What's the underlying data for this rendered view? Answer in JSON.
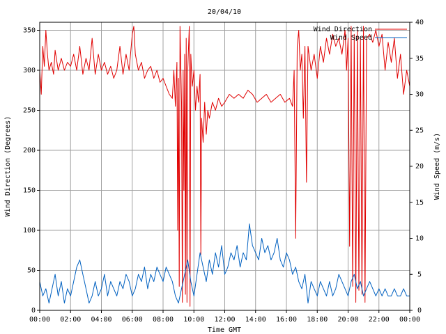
{
  "chart_data": {
    "type": "line",
    "title": "20/04/10",
    "xlabel": "Time GMT",
    "ylabel_left": "Wind Direction (Degrees)",
    "ylabel_right": "Wind Speed (m/s)",
    "x_unit": "hours",
    "xlim": [
      0,
      24
    ],
    "ylim_left": [
      0,
      360
    ],
    "ylim_right": [
      0,
      40
    ],
    "x_ticks": [
      {
        "value": 0,
        "label": "00:00"
      },
      {
        "value": 2,
        "label": "02:00"
      },
      {
        "value": 4,
        "label": "04:00"
      },
      {
        "value": 6,
        "label": "06:00"
      },
      {
        "value": 8,
        "label": "08:00"
      },
      {
        "value": 10,
        "label": "10:00"
      },
      {
        "value": 12,
        "label": "12:00"
      },
      {
        "value": 14,
        "label": "14:00"
      },
      {
        "value": 16,
        "label": "16:00"
      },
      {
        "value": 18,
        "label": "18:00"
      },
      {
        "value": 20,
        "label": "20:00"
      },
      {
        "value": 22,
        "label": "22:00"
      },
      {
        "value": 24,
        "label": "00:00"
      }
    ],
    "y_ticks_left": [
      {
        "value": 0,
        "label": "0"
      },
      {
        "value": 50,
        "label": "50"
      },
      {
        "value": 100,
        "label": "100"
      },
      {
        "value": 150,
        "label": "150"
      },
      {
        "value": 200,
        "label": "200"
      },
      {
        "value": 250,
        "label": "250"
      },
      {
        "value": 300,
        "label": "300"
      },
      {
        "value": 350,
        "label": "350"
      }
    ],
    "y_ticks_right": [
      {
        "value": 0,
        "label": "0"
      },
      {
        "value": 5,
        "label": "5"
      },
      {
        "value": 10,
        "label": "10"
      },
      {
        "value": 15,
        "label": "15"
      },
      {
        "value": 20,
        "label": "20"
      },
      {
        "value": 25,
        "label": "25"
      },
      {
        "value": 30,
        "label": "30"
      },
      {
        "value": 35,
        "label": "35"
      },
      {
        "value": 40,
        "label": "40"
      }
    ],
    "grid": true,
    "legend_position": "top-right",
    "series": [
      {
        "name": "Wind Direction",
        "axis": "left",
        "color": "#e00000",
        "points": [
          [
            0.0,
            300
          ],
          [
            0.1,
            270
          ],
          [
            0.2,
            330
          ],
          [
            0.3,
            305
          ],
          [
            0.4,
            350
          ],
          [
            0.5,
            320
          ],
          [
            0.6,
            300
          ],
          [
            0.75,
            310
          ],
          [
            0.9,
            295
          ],
          [
            1.0,
            325
          ],
          [
            1.2,
            300
          ],
          [
            1.4,
            315
          ],
          [
            1.6,
            300
          ],
          [
            1.8,
            310
          ],
          [
            2.0,
            305
          ],
          [
            2.2,
            320
          ],
          [
            2.4,
            300
          ],
          [
            2.6,
            330
          ],
          [
            2.8,
            295
          ],
          [
            3.0,
            315
          ],
          [
            3.2,
            300
          ],
          [
            3.4,
            340
          ],
          [
            3.6,
            295
          ],
          [
            3.8,
            320
          ],
          [
            4.0,
            300
          ],
          [
            4.2,
            310
          ],
          [
            4.4,
            295
          ],
          [
            4.6,
            305
          ],
          [
            4.8,
            290
          ],
          [
            5.0,
            300
          ],
          [
            5.2,
            330
          ],
          [
            5.4,
            295
          ],
          [
            5.6,
            320
          ],
          [
            5.8,
            300
          ],
          [
            6.0,
            345
          ],
          [
            6.1,
            355
          ],
          [
            6.2,
            320
          ],
          [
            6.4,
            300
          ],
          [
            6.6,
            310
          ],
          [
            6.8,
            290
          ],
          [
            7.0,
            300
          ],
          [
            7.2,
            305
          ],
          [
            7.4,
            290
          ],
          [
            7.6,
            300
          ],
          [
            7.8,
            285
          ],
          [
            8.0,
            290
          ],
          [
            8.2,
            280
          ],
          [
            8.4,
            270
          ],
          [
            8.6,
            265
          ],
          [
            8.7,
            300
          ],
          [
            8.8,
            255
          ],
          [
            8.9,
            310
          ],
          [
            8.95,
            100
          ],
          [
            9.0,
            290
          ],
          [
            9.05,
            30
          ],
          [
            9.1,
            355
          ],
          [
            9.2,
            260
          ],
          [
            9.25,
            10
          ],
          [
            9.3,
            300
          ],
          [
            9.35,
            150
          ],
          [
            9.4,
            320
          ],
          [
            9.45,
            20
          ],
          [
            9.5,
            340
          ],
          [
            9.55,
            10
          ],
          [
            9.6,
            300
          ],
          [
            9.7,
            355
          ],
          [
            9.75,
            5
          ],
          [
            9.8,
            320
          ],
          [
            9.9,
            280
          ],
          [
            10.0,
            300
          ],
          [
            10.1,
            250
          ],
          [
            10.2,
            280
          ],
          [
            10.3,
            260
          ],
          [
            10.4,
            295
          ],
          [
            10.45,
            70
          ],
          [
            10.5,
            240
          ],
          [
            10.6,
            210
          ],
          [
            10.7,
            260
          ],
          [
            10.8,
            220
          ],
          [
            10.9,
            250
          ],
          [
            11.0,
            240
          ],
          [
            11.2,
            260
          ],
          [
            11.4,
            250
          ],
          [
            11.6,
            265
          ],
          [
            11.8,
            255
          ],
          [
            12.0,
            260
          ],
          [
            12.3,
            270
          ],
          [
            12.6,
            265
          ],
          [
            12.9,
            270
          ],
          [
            13.2,
            265
          ],
          [
            13.5,
            275
          ],
          [
            13.8,
            270
          ],
          [
            14.1,
            260
          ],
          [
            14.4,
            265
          ],
          [
            14.7,
            270
          ],
          [
            15.0,
            260
          ],
          [
            15.3,
            265
          ],
          [
            15.6,
            270
          ],
          [
            15.9,
            260
          ],
          [
            16.2,
            265
          ],
          [
            16.4,
            255
          ],
          [
            16.5,
            300
          ],
          [
            16.6,
            90
          ],
          [
            16.7,
            330
          ],
          [
            16.8,
            350
          ],
          [
            16.9,
            300
          ],
          [
            17.0,
            320
          ],
          [
            17.1,
            240
          ],
          [
            17.2,
            330
          ],
          [
            17.3,
            160
          ],
          [
            17.4,
            330
          ],
          [
            17.6,
            300
          ],
          [
            17.8,
            320
          ],
          [
            18.0,
            290
          ],
          [
            18.2,
            330
          ],
          [
            18.4,
            310
          ],
          [
            18.6,
            340
          ],
          [
            18.8,
            320
          ],
          [
            19.0,
            345
          ],
          [
            19.2,
            330
          ],
          [
            19.4,
            340
          ],
          [
            19.6,
            320
          ],
          [
            19.8,
            350
          ],
          [
            19.9,
            300
          ],
          [
            20.0,
            340
          ],
          [
            20.1,
            80
          ],
          [
            20.2,
            355
          ],
          [
            20.3,
            30
          ],
          [
            20.4,
            345
          ],
          [
            20.5,
            10
          ],
          [
            20.6,
            350
          ],
          [
            20.7,
            25
          ],
          [
            20.8,
            340
          ],
          [
            20.9,
            20
          ],
          [
            21.0,
            355
          ],
          [
            21.1,
            10
          ],
          [
            21.2,
            340
          ],
          [
            21.4,
            345
          ],
          [
            21.6,
            335
          ],
          [
            21.8,
            350
          ],
          [
            22.0,
            330
          ],
          [
            22.2,
            345
          ],
          [
            22.4,
            300
          ],
          [
            22.6,
            335
          ],
          [
            22.8,
            310
          ],
          [
            23.0,
            340
          ],
          [
            23.2,
            290
          ],
          [
            23.4,
            320
          ],
          [
            23.6,
            270
          ],
          [
            23.8,
            300
          ],
          [
            24.0,
            280
          ]
        ]
      },
      {
        "name": "Wind Speed",
        "axis": "right",
        "color": "#0060c0",
        "points": [
          [
            0.0,
            4
          ],
          [
            0.2,
            2
          ],
          [
            0.4,
            3
          ],
          [
            0.6,
            1
          ],
          [
            0.8,
            3
          ],
          [
            1.0,
            5
          ],
          [
            1.2,
            2
          ],
          [
            1.4,
            4
          ],
          [
            1.6,
            1
          ],
          [
            1.8,
            3
          ],
          [
            2.0,
            2
          ],
          [
            2.2,
            4
          ],
          [
            2.4,
            6
          ],
          [
            2.6,
            7
          ],
          [
            2.8,
            5
          ],
          [
            3.0,
            3
          ],
          [
            3.2,
            1
          ],
          [
            3.4,
            2
          ],
          [
            3.6,
            4
          ],
          [
            3.8,
            2
          ],
          [
            4.0,
            3
          ],
          [
            4.2,
            5
          ],
          [
            4.4,
            2
          ],
          [
            4.6,
            4
          ],
          [
            4.8,
            3
          ],
          [
            5.0,
            2
          ],
          [
            5.2,
            4
          ],
          [
            5.4,
            3
          ],
          [
            5.6,
            5
          ],
          [
            5.8,
            4
          ],
          [
            6.0,
            2
          ],
          [
            6.2,
            3
          ],
          [
            6.4,
            5
          ],
          [
            6.6,
            4
          ],
          [
            6.8,
            6
          ],
          [
            7.0,
            3
          ],
          [
            7.2,
            5
          ],
          [
            7.4,
            4
          ],
          [
            7.6,
            6
          ],
          [
            7.8,
            5
          ],
          [
            8.0,
            4
          ],
          [
            8.2,
            6
          ],
          [
            8.4,
            5
          ],
          [
            8.6,
            4
          ],
          [
            8.8,
            2
          ],
          [
            9.0,
            1
          ],
          [
            9.2,
            3
          ],
          [
            9.4,
            5
          ],
          [
            9.6,
            7
          ],
          [
            9.8,
            4
          ],
          [
            10.0,
            2
          ],
          [
            10.2,
            5
          ],
          [
            10.4,
            8
          ],
          [
            10.6,
            6
          ],
          [
            10.8,
            4
          ],
          [
            11.0,
            7
          ],
          [
            11.2,
            5
          ],
          [
            11.4,
            8
          ],
          [
            11.6,
            6
          ],
          [
            11.8,
            9
          ],
          [
            12.0,
            5
          ],
          [
            12.2,
            6
          ],
          [
            12.4,
            8
          ],
          [
            12.6,
            7
          ],
          [
            12.8,
            9
          ],
          [
            13.0,
            6
          ],
          [
            13.2,
            8
          ],
          [
            13.4,
            7
          ],
          [
            13.6,
            12
          ],
          [
            13.8,
            9
          ],
          [
            14.0,
            8
          ],
          [
            14.2,
            7
          ],
          [
            14.4,
            10
          ],
          [
            14.6,
            8
          ],
          [
            14.8,
            9
          ],
          [
            15.0,
            7
          ],
          [
            15.2,
            8
          ],
          [
            15.4,
            10
          ],
          [
            15.6,
            7
          ],
          [
            15.8,
            6
          ],
          [
            16.0,
            8
          ],
          [
            16.2,
            7
          ],
          [
            16.4,
            5
          ],
          [
            16.6,
            6
          ],
          [
            16.8,
            4
          ],
          [
            17.0,
            3
          ],
          [
            17.2,
            5
          ],
          [
            17.4,
            1
          ],
          [
            17.6,
            4
          ],
          [
            17.8,
            3
          ],
          [
            18.0,
            2
          ],
          [
            18.2,
            4
          ],
          [
            18.4,
            3
          ],
          [
            18.6,
            2
          ],
          [
            18.8,
            4
          ],
          [
            19.0,
            2
          ],
          [
            19.2,
            3
          ],
          [
            19.4,
            5
          ],
          [
            19.6,
            4
          ],
          [
            19.8,
            3
          ],
          [
            20.0,
            2
          ],
          [
            20.2,
            4
          ],
          [
            20.4,
            5
          ],
          [
            20.6,
            3
          ],
          [
            20.8,
            4
          ],
          [
            21.0,
            2
          ],
          [
            21.2,
            3
          ],
          [
            21.4,
            4
          ],
          [
            21.6,
            3
          ],
          [
            21.8,
            2
          ],
          [
            22.0,
            3
          ],
          [
            22.2,
            2
          ],
          [
            22.4,
            3
          ],
          [
            22.6,
            2
          ],
          [
            22.8,
            2
          ],
          [
            23.0,
            3
          ],
          [
            23.2,
            2
          ],
          [
            23.4,
            2
          ],
          [
            23.6,
            3
          ],
          [
            23.8,
            2
          ],
          [
            24.0,
            2
          ]
        ]
      }
    ]
  }
}
